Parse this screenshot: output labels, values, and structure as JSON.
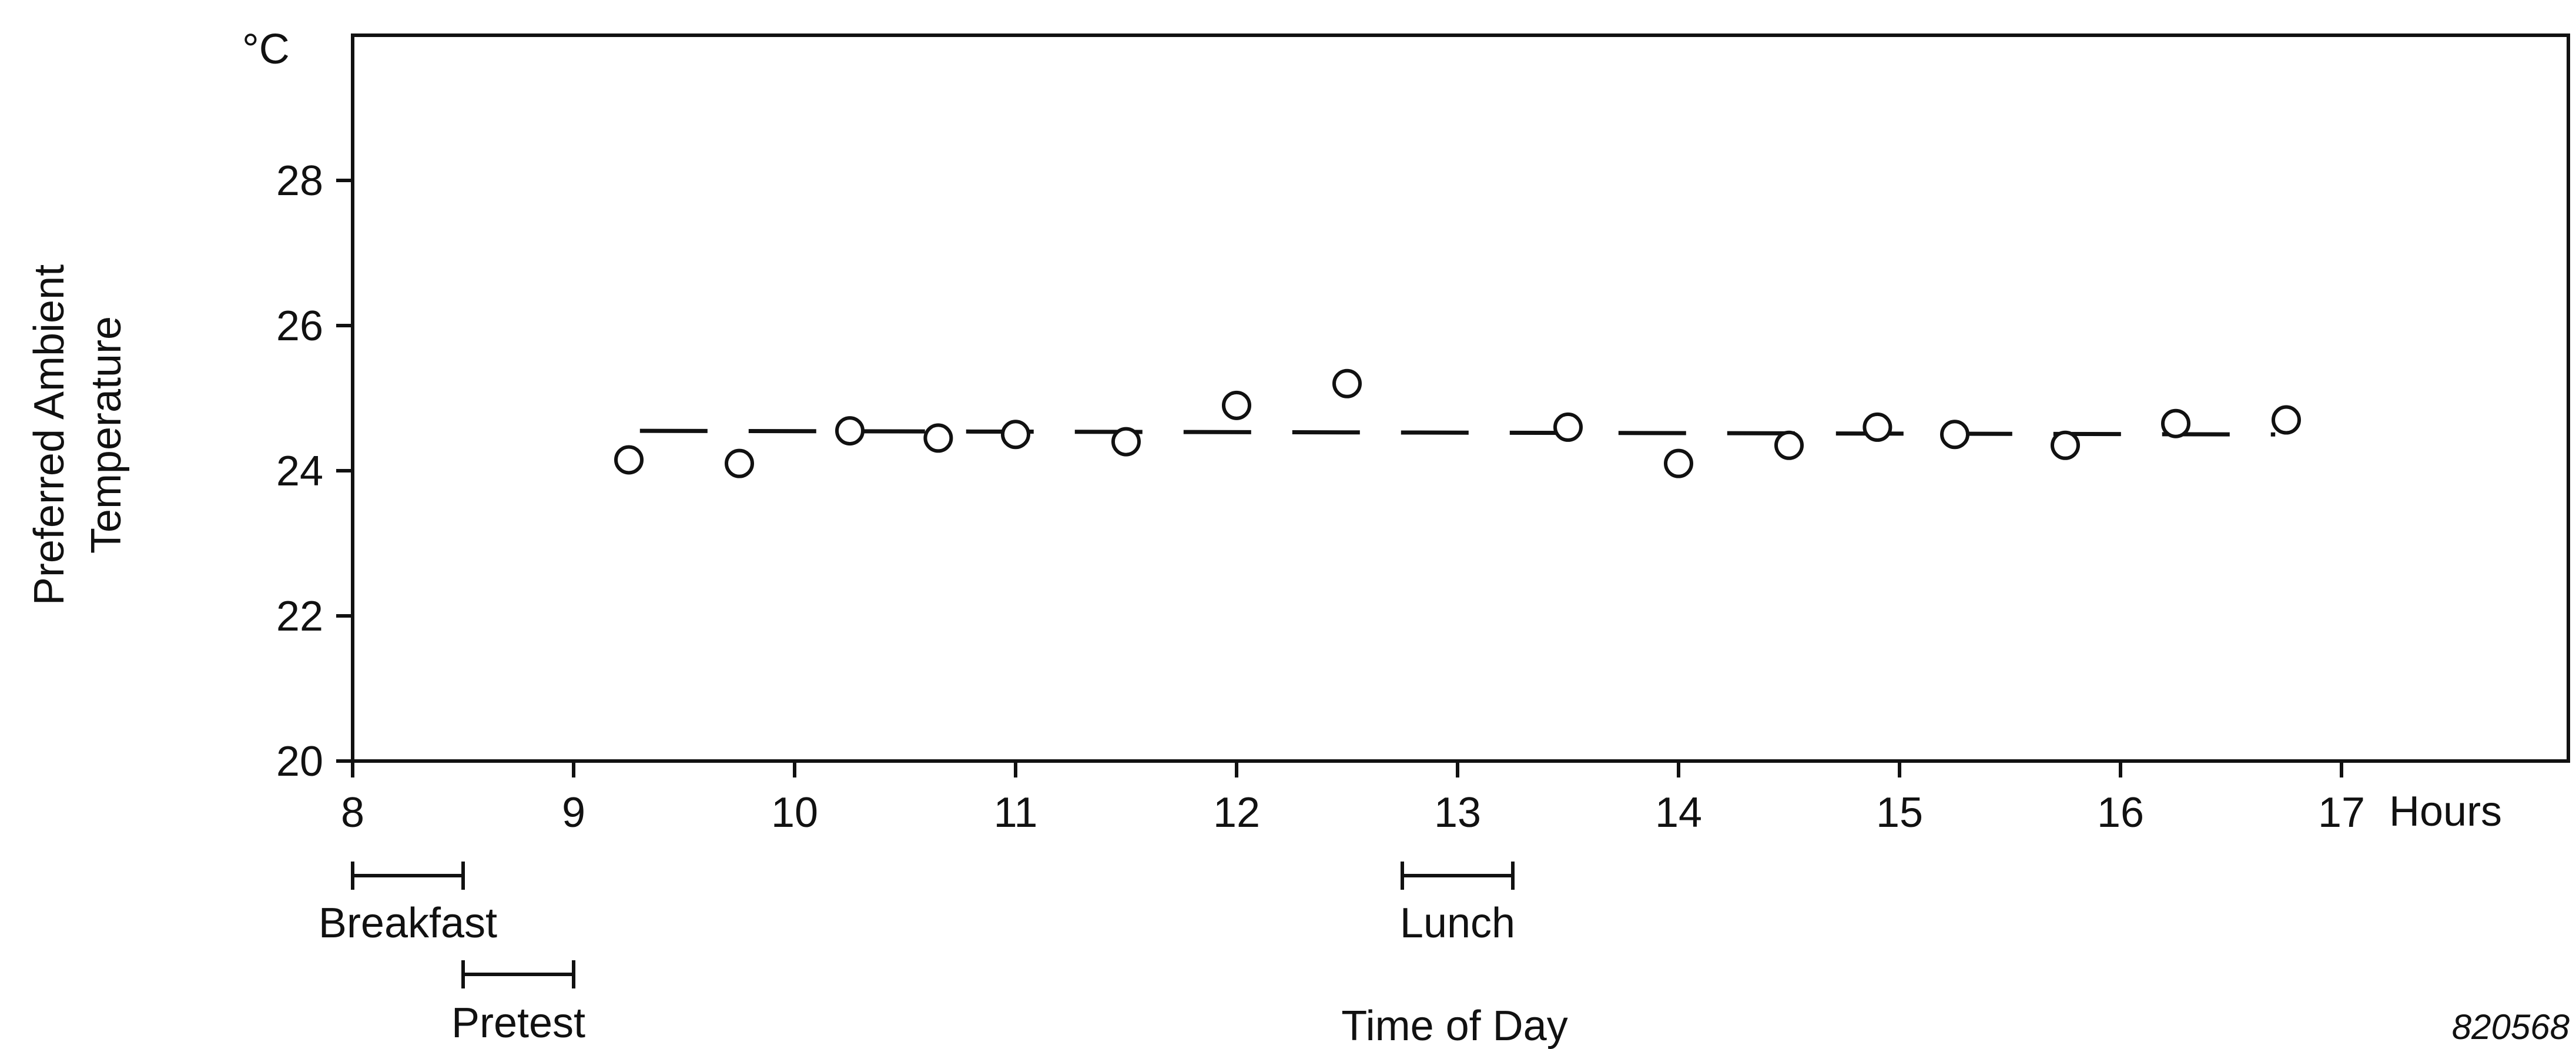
{
  "chart_data": {
    "type": "scatter",
    "y_unit": "°C",
    "ylabel_line1": "Preferred Ambient",
    "ylabel_line2": "Temperature",
    "xlabel": "Time of Day",
    "x_unit": "Hours",
    "xlim": [
      8,
      18
    ],
    "ylim": [
      20,
      30
    ],
    "x_ticks": [
      8,
      9,
      10,
      11,
      12,
      13,
      14,
      15,
      16,
      17
    ],
    "y_ticks": [
      20,
      22,
      24,
      26,
      28
    ],
    "grid": false,
    "legend": "none",
    "series": [
      {
        "marker": "open-circle",
        "points": [
          {
            "x": 9.25,
            "y": 24.15
          },
          {
            "x": 9.75,
            "y": 24.1
          },
          {
            "x": 10.25,
            "y": 24.55
          },
          {
            "x": 10.65,
            "y": 24.45
          },
          {
            "x": 11.0,
            "y": 24.5
          },
          {
            "x": 11.5,
            "y": 24.4
          },
          {
            "x": 12.0,
            "y": 24.9
          },
          {
            "x": 12.5,
            "y": 25.2
          },
          {
            "x": 13.5,
            "y": 24.6
          },
          {
            "x": 14.0,
            "y": 24.1
          },
          {
            "x": 14.5,
            "y": 24.35
          },
          {
            "x": 14.9,
            "y": 24.6
          },
          {
            "x": 15.25,
            "y": 24.5
          },
          {
            "x": 15.75,
            "y": 24.35
          },
          {
            "x": 16.25,
            "y": 24.65
          },
          {
            "x": 16.75,
            "y": 24.7
          }
        ]
      }
    ],
    "trend_line": {
      "style": "dashed",
      "x": [
        9.3,
        16.7
      ],
      "y": [
        24.55,
        24.5
      ]
    },
    "periods": [
      {
        "label": "Breakfast",
        "start": 8.0,
        "end": 8.5,
        "row": 1
      },
      {
        "label": "Pretest",
        "start": 8.5,
        "end": 9.0,
        "row": 2
      },
      {
        "label": "Lunch",
        "start": 12.75,
        "end": 13.25,
        "row": 1
      }
    ],
    "figure_id": "820568"
  }
}
